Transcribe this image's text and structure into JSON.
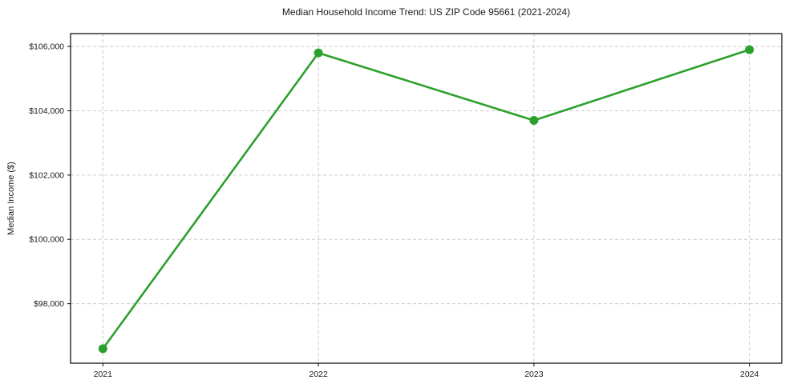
{
  "chart_data": {
    "type": "line",
    "title": "Median Household Income Trend: US ZIP Code 95661 (2021-2024)",
    "xlabel": "",
    "ylabel": "Median Income ($)",
    "x": [
      2021,
      2022,
      2023,
      2024
    ],
    "xtick_labels": [
      "2021",
      "2022",
      "2023",
      "2024"
    ],
    "series": [
      {
        "name": "Median Household Income",
        "values": [
          96600,
          105800,
          103700,
          105900
        ]
      }
    ],
    "yticks": [
      98000,
      100000,
      102000,
      104000,
      106000
    ],
    "ytick_labels": [
      "$98,000",
      "$100,000",
      "$102,000",
      "$104,000",
      "$106,000"
    ],
    "ylim": [
      96150,
      106400
    ],
    "xlim": [
      2020.85,
      2024.15
    ],
    "grid": true,
    "grid_style": "dashed",
    "legend": "none",
    "colors": {
      "line": "#2ca02c",
      "marker": "#2ca02c",
      "grid": "#c9c9c9",
      "axis": "#000000",
      "text": "#1a1a1a",
      "background": "#ffffff"
    }
  }
}
